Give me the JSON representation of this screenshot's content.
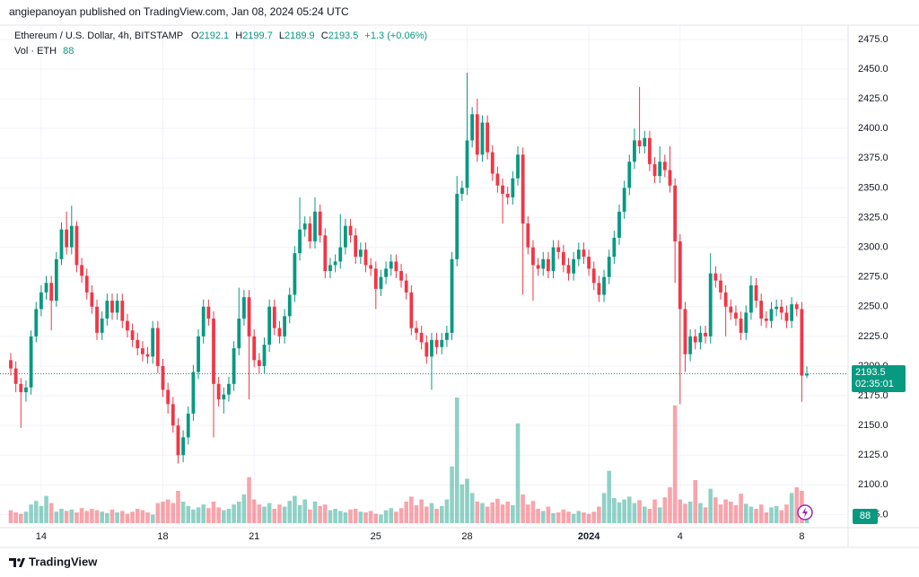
{
  "header": {
    "publisher": "angiepanoyan published on TradingView.com, Jan 08, 2024 05:24 UTC"
  },
  "footer": {
    "brand": "TradingView"
  },
  "chart_data": {
    "type": "candlestick",
    "title": "Ethereum / U.S. Dollar, 4h, BITSTAMP",
    "ohlc_labels": [
      "O",
      "H",
      "L",
      "C"
    ],
    "change": "+1.3 (+0.06%)",
    "volume_label": "Vol · ETH",
    "countdown": "02:35:01",
    "categories": [
      null,
      null,
      null,
      null,
      null,
      null,
      "14",
      null,
      null,
      null,
      null,
      null,
      null,
      null,
      null,
      null,
      null,
      null,
      null,
      null,
      null,
      null,
      null,
      null,
      null,
      null,
      null,
      null,
      null,
      null,
      "18",
      null,
      null,
      null,
      null,
      null,
      null,
      null,
      null,
      null,
      null,
      null,
      null,
      null,
      null,
      null,
      null,
      null,
      "21",
      null,
      null,
      null,
      null,
      null,
      null,
      null,
      null,
      null,
      null,
      null,
      null,
      null,
      null,
      null,
      null,
      null,
      null,
      null,
      null,
      null,
      null,
      null,
      "25",
      null,
      null,
      null,
      null,
      null,
      null,
      null,
      null,
      null,
      null,
      null,
      null,
      null,
      null,
      null,
      null,
      null,
      "28",
      null,
      null,
      null,
      null,
      null,
      null,
      null,
      null,
      null,
      null,
      null,
      null,
      null,
      null,
      null,
      null,
      null,
      null,
      null,
      null,
      null,
      null,
      null,
      "2024",
      null,
      null,
      null,
      null,
      null,
      null,
      null,
      null,
      null,
      null,
      null,
      null,
      null,
      null,
      null,
      null,
      null,
      "4",
      null,
      null,
      null,
      null,
      null,
      null,
      null,
      null,
      null,
      null,
      null,
      null,
      null,
      null,
      null,
      null,
      null,
      null,
      null,
      null,
      null,
      null,
      null,
      "8",
      null
    ],
    "open": [
      2205,
      2198,
      2185,
      2178,
      2182,
      2225,
      2248,
      2262,
      2270,
      2255,
      2290,
      2315,
      2300,
      2318,
      2285,
      2276,
      2262,
      2250,
      2228,
      2240,
      2255,
      2245,
      2255,
      2238,
      2230,
      2222,
      2215,
      2210,
      2208,
      2232,
      2200,
      2180,
      2168,
      2150,
      2125,
      2140,
      2160,
      2195,
      2225,
      2250,
      2240,
      2185,
      2172,
      2176,
      2185,
      2215,
      2240,
      2258,
      2225,
      2205,
      2200,
      2218,
      2250,
      2232,
      2225,
      2242,
      2260,
      2295,
      2315,
      2320,
      2305,
      2330,
      2310,
      2280,
      2285,
      2288,
      2300,
      2318,
      2310,
      2292,
      2298,
      2285,
      2282,
      2265,
      2275,
      2282,
      2288,
      2280,
      2272,
      2262,
      2232,
      2228,
      2220,
      2208,
      2222,
      2216,
      2222,
      2228,
      2290,
      2345,
      2350,
      2390,
      2412,
      2378,
      2405,
      2380,
      2362,
      2352,
      2345,
      2342,
      2358,
      2378,
      2320,
      2300,
      2285,
      2282,
      2290,
      2280,
      2300,
      2296,
      2285,
      2278,
      2290,
      2298,
      2292,
      2282,
      2270,
      2260,
      2275,
      2292,
      2308,
      2330,
      2350,
      2372,
      2390,
      2385,
      2392,
      2370,
      2360,
      2372,
      2365,
      2352,
      2305,
      2248,
      2210,
      2225,
      2220,
      2228,
      2225,
      2278,
      2272,
      2262,
      2250,
      2245,
      2240,
      2228,
      2245,
      2268,
      2255,
      2240,
      2238,
      2248,
      2250,
      2245,
      2238,
      2252,
      2248,
      2192.1
    ],
    "high": [
      2211,
      2204,
      2190,
      2188,
      2230,
      2254,
      2268,
      2276,
      2276,
      2296,
      2321,
      2330,
      2335,
      2322,
      2291,
      2282,
      2268,
      2256,
      2246,
      2261,
      2261,
      2261,
      2261,
      2244,
      2236,
      2228,
      2221,
      2216,
      2238,
      2238,
      2206,
      2186,
      2174,
      2156,
      2146,
      2166,
      2201,
      2231,
      2256,
      2256,
      2246,
      2191,
      2182,
      2191,
      2221,
      2266,
      2264,
      2264,
      2231,
      2211,
      2224,
      2256,
      2256,
      2238,
      2248,
      2266,
      2301,
      2342,
      2326,
      2326,
      2342,
      2336,
      2316,
      2291,
      2294,
      2328,
      2324,
      2324,
      2316,
      2304,
      2304,
      2291,
      2288,
      2281,
      2288,
      2294,
      2294,
      2286,
      2278,
      2268,
      2238,
      2234,
      2226,
      2228,
      2228,
      2228,
      2234,
      2296,
      2360,
      2356,
      2447,
      2418,
      2425,
      2411,
      2411,
      2386,
      2368,
      2358,
      2351,
      2364,
      2385,
      2384,
      2326,
      2306,
      2291,
      2296,
      2296,
      2306,
      2306,
      2302,
      2291,
      2296,
      2304,
      2304,
      2298,
      2288,
      2276,
      2281,
      2298,
      2314,
      2336,
      2356,
      2378,
      2400,
      2435,
      2398,
      2398,
      2376,
      2385,
      2378,
      2385,
      2358,
      2311,
      2254,
      2231,
      2231,
      2234,
      2234,
      2295,
      2284,
      2278,
      2268,
      2256,
      2251,
      2246,
      2251,
      2276,
      2274,
      2261,
      2246,
      2254,
      2256,
      2256,
      2251,
      2258,
      2254,
      2254,
      2199.7
    ],
    "low": [
      2192,
      2178,
      2148,
      2170,
      2176,
      2220,
      2242,
      2256,
      2230,
      2250,
      2285,
      2294,
      2294,
      2279,
      2270,
      2256,
      2244,
      2222,
      2222,
      2234,
      2239,
      2239,
      2232,
      2224,
      2216,
      2209,
      2204,
      2202,
      2202,
      2194,
      2174,
      2160,
      2144,
      2118,
      2119,
      2134,
      2154,
      2189,
      2219,
      2234,
      2140,
      2166,
      2160,
      2170,
      2179,
      2209,
      2234,
      2172,
      2199,
      2194,
      2194,
      2212,
      2226,
      2219,
      2219,
      2236,
      2254,
      2289,
      2309,
      2299,
      2299,
      2304,
      2274,
      2274,
      2279,
      2282,
      2294,
      2304,
      2286,
      2286,
      2279,
      2276,
      2248,
      2259,
      2269,
      2276,
      2274,
      2266,
      2256,
      2226,
      2222,
      2214,
      2202,
      2180,
      2210,
      2210,
      2216,
      2222,
      2284,
      2339,
      2344,
      2384,
      2372,
      2372,
      2374,
      2356,
      2346,
      2320,
      2336,
      2336,
      2352,
      2260,
      2294,
      2255,
      2276,
      2276,
      2274,
      2274,
      2290,
      2279,
      2272,
      2272,
      2284,
      2286,
      2276,
      2264,
      2254,
      2254,
      2269,
      2286,
      2302,
      2324,
      2344,
      2366,
      2379,
      2379,
      2364,
      2354,
      2354,
      2359,
      2346,
      2270,
      2168,
      2195,
      2204,
      2214,
      2214,
      2219,
      2219,
      2266,
      2256,
      2225,
      2239,
      2234,
      2222,
      2222,
      2239,
      2249,
      2234,
      2232,
      2232,
      2242,
      2239,
      2232,
      2232,
      2242,
      2170,
      2189.9
    ],
    "close": [
      2198,
      2185,
      2178,
      2182,
      2225,
      2248,
      2262,
      2270,
      2255,
      2290,
      2315,
      2300,
      2318,
      2285,
      2276,
      2262,
      2250,
      2228,
      2240,
      2255,
      2245,
      2255,
      2238,
      2230,
      2222,
      2215,
      2210,
      2208,
      2232,
      2200,
      2180,
      2168,
      2150,
      2125,
      2140,
      2160,
      2195,
      2225,
      2250,
      2240,
      2185,
      2172,
      2176,
      2185,
      2215,
      2240,
      2258,
      2225,
      2205,
      2200,
      2218,
      2250,
      2232,
      2225,
      2242,
      2260,
      2295,
      2315,
      2320,
      2305,
      2330,
      2310,
      2280,
      2285,
      2288,
      2300,
      2318,
      2310,
      2292,
      2298,
      2285,
      2282,
      2265,
      2275,
      2282,
      2288,
      2280,
      2272,
      2262,
      2232,
      2228,
      2220,
      2208,
      2222,
      2216,
      2222,
      2228,
      2290,
      2345,
      2350,
      2390,
      2412,
      2378,
      2405,
      2380,
      2362,
      2352,
      2345,
      2342,
      2358,
      2378,
      2320,
      2300,
      2285,
      2282,
      2290,
      2280,
      2300,
      2296,
      2285,
      2278,
      2290,
      2298,
      2292,
      2282,
      2270,
      2260,
      2275,
      2292,
      2308,
      2330,
      2350,
      2372,
      2390,
      2385,
      2392,
      2370,
      2360,
      2372,
      2365,
      2352,
      2305,
      2248,
      2210,
      2225,
      2220,
      2228,
      2225,
      2278,
      2272,
      2262,
      2250,
      2245,
      2240,
      2228,
      2245,
      2268,
      2255,
      2240,
      2238,
      2248,
      2250,
      2245,
      2238,
      2252,
      2248,
      2192,
      2193.5
    ],
    "volume": [
      180,
      150,
      130,
      160,
      260,
      310,
      240,
      380,
      280,
      160,
      200,
      170,
      190,
      150,
      210,
      170,
      200,
      180,
      160,
      140,
      190,
      150,
      170,
      130,
      160,
      200,
      180,
      150,
      120,
      280,
      300,
      330,
      280,
      450,
      300,
      240,
      190,
      220,
      260,
      210,
      300,
      220,
      180,
      200,
      260,
      300,
      400,
      640,
      330,
      260,
      230,
      280,
      200,
      260,
      230,
      310,
      380,
      250,
      330,
      190,
      300,
      240,
      260,
      180,
      200,
      170,
      150,
      190,
      200,
      160,
      150,
      170,
      130,
      120,
      180,
      210,
      160,
      210,
      300,
      370,
      250,
      330,
      230,
      280,
      200,
      240,
      330,
      790,
      1750,
      540,
      620,
      420,
      300,
      280,
      230,
      290,
      340,
      260,
      300,
      250,
      1390,
      400,
      260,
      310,
      200,
      170,
      230,
      140,
      150,
      190,
      160,
      130,
      170,
      150,
      130,
      160,
      230,
      420,
      730,
      350,
      290,
      330,
      370,
      280,
      320,
      230,
      200,
      330,
      220,
      360,
      500,
      1640,
      330,
      270,
      300,
      600,
      280,
      220,
      480,
      360,
      260,
      330,
      300,
      250,
      410,
      270,
      230,
      200,
      260,
      150,
      220,
      240,
      180,
      260,
      420,
      500,
      450,
      88
    ],
    "up_color": "#089981",
    "down_color": "#f23645",
    "ylim": [
      2064,
      2487
    ],
    "yticks": [
      {
        "value": 2075,
        "label": "2075.0"
      },
      {
        "value": 2100,
        "label": "2100.0"
      },
      {
        "value": 2125,
        "label": "2125.0"
      },
      {
        "value": 2150,
        "label": "2150.0"
      },
      {
        "value": 2175,
        "label": "2175.0"
      },
      {
        "value": 2200,
        "label": "2200.0"
      },
      {
        "value": 2225,
        "label": "2225.0"
      },
      {
        "value": 2250,
        "label": "2250.0"
      },
      {
        "value": 2275,
        "label": "2275.0"
      },
      {
        "value": 2300,
        "label": "2300.0"
      },
      {
        "value": 2325,
        "label": "2325.0"
      },
      {
        "value": 2350,
        "label": "2350.0"
      },
      {
        "value": 2375,
        "label": "2375.0"
      },
      {
        "value": 2400,
        "label": "2400.0"
      },
      {
        "value": 2425,
        "label": "2425.0"
      },
      {
        "value": 2450,
        "label": "2450.0"
      },
      {
        "value": 2475,
        "label": "2475.0"
      }
    ],
    "grid": true
  }
}
